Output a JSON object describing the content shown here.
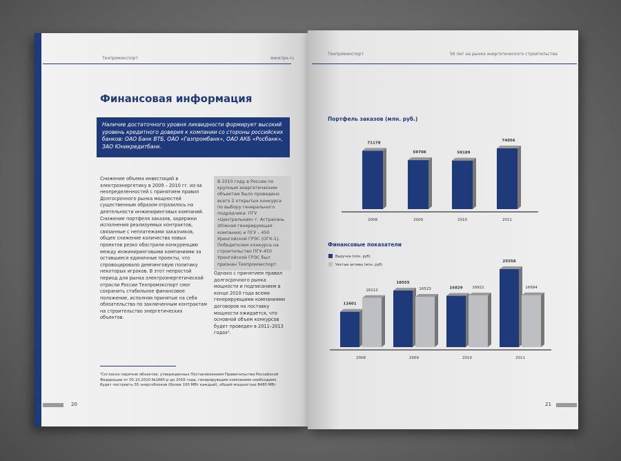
{
  "left_page": {
    "header": {
      "brand": "Техпромэкспорт",
      "site": "www.tpe.ru"
    },
    "title": "Финансовая информация",
    "lead": "Наличие достаточного уровня ликвидности формирует высокий уровень кредитного доверия к компании со стороны российских банков: ОАО Банк ВТБ, ОАО «Газпромбанк», ОАО АКБ «Росбанк», ЗАО Юникредитбанк.",
    "body": "Снижение объема инвестиций в электроэнергетику в 2009 – 2010 гг. из-за неопределенностей с принятием правил Долгосрочного рынка мощностей существенным образом отразилось на деятельности инжиниринговых компаний. Снижение портфеля заказов, задержки исполнения реализуемых контрактов, связанные с неплатежами заказчиков, общее снижение количества новых проектов резко обострили конкуренцию между инжиниринговыми компаниями за оставшиеся единичные проекты, что спровоцировало демпинговую политику некоторых игроков. В этот непростой период для рынка электроэнергетической отрасли России Техпромэкспорт смог сохранить стабильное финансовое положение, исполняя принятые на себя обязательства по заключенным контрактам на строительство энергетических объектов.",
    "sidebar": "В 2010 году в России по крупным энергетическим объектам было проведено всего 2 открытых конкурса по выбору генерального подрядчика: ПГУ «Центральная» г. Астрахань (Южная генерирующая компания) и ПГУ – 450 Уренгойской ГРЭС (ОГК-1). Победителем конкурса на строительство ПГУ-450 Уренгойской ГРЭС был признан Техпромэкспорт.",
    "body2": "Однако с принятием правил долгосрочного рынка мощности и подписанием в конце 2010 года всеми генерирующими компаниями договоров на поставку мощности ожидается, что основной объем конкурсов будет проведен в 2011–2013 годах¹.",
    "footnote": "¹Согласно перечню объектов, утвержденных Постановлением Правительства Российской Федерации от 05.10.2010 №1685-р до 2016 года, генерирующим компаниям необходимо будет построить 55 энергоблоков (более 100 МВт каждый), общей мощностью 8480 МВт",
    "page_number": 20
  },
  "right_page": {
    "header": {
      "brand": "Техпромэкспорт",
      "tagline": "56 лет на рынке энергетического строительства"
    },
    "page_number": 21
  },
  "chart_data": [
    {
      "type": "bar",
      "title": "Портфель заказов (млн. руб.)",
      "categories": [
        "2008",
        "2009",
        "2010",
        "2011"
      ],
      "values": [
        71178,
        59708,
        59189,
        74056
      ],
      "color": "#1f3a7a"
    },
    {
      "type": "bar",
      "title": "Финансовые показатели",
      "categories": [
        "2008",
        "2009",
        "2010",
        "2011"
      ],
      "series": [
        {
          "name": "Выручка (млн. руб)",
          "color": "#1f3a7a",
          "values": [
            11601,
            18555,
            16829,
            25558
          ]
        },
        {
          "name": "Чистые активы (млн. руб)",
          "color": "#bdbfc2",
          "values": [
            16112,
            16523,
            16921,
            16994
          ]
        }
      ]
    }
  ]
}
